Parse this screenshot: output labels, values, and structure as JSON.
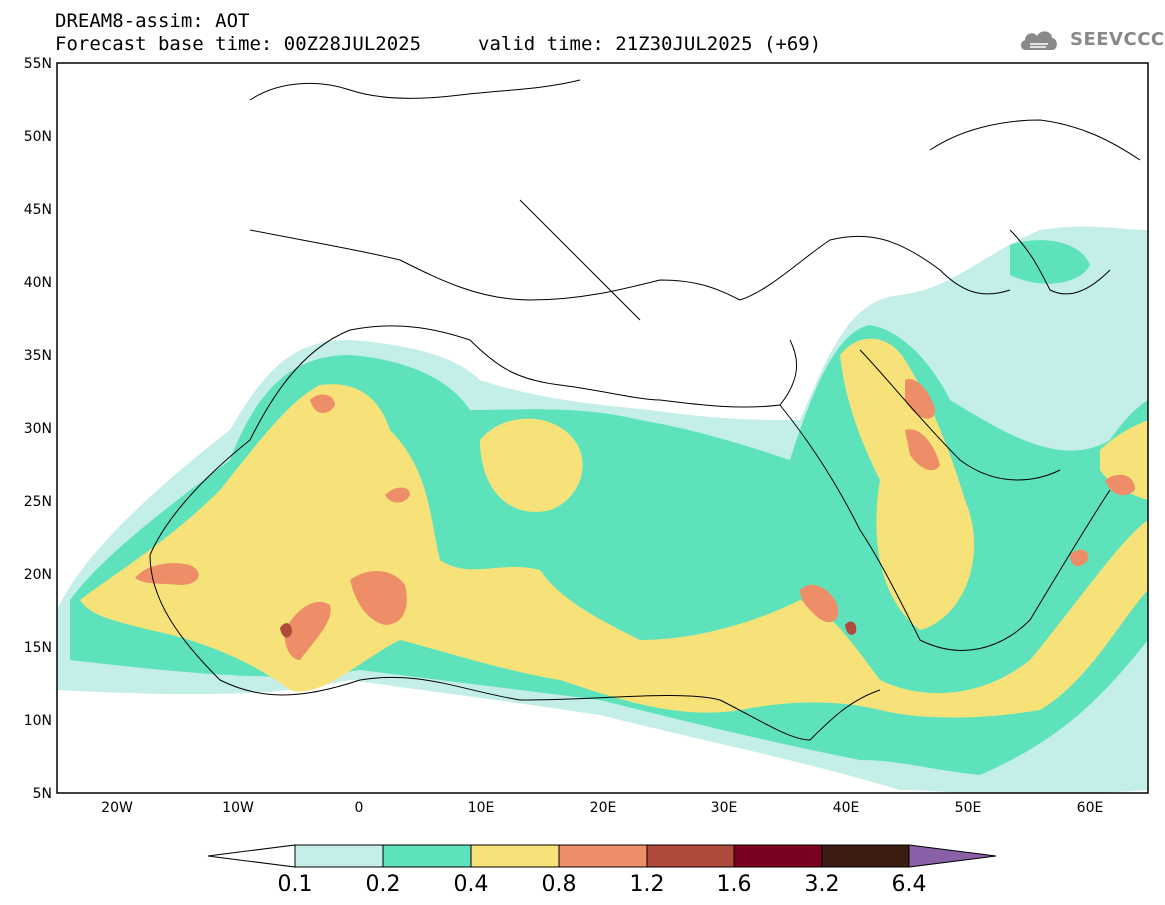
{
  "header": {
    "title_line1": "DREAM8-assim: AOT",
    "title_line2": "Forecast base time: 00Z28JUL2025",
    "valid_time": "valid time: 21Z30JUL2025 (+69)",
    "logo_text": "SEEVCCC"
  },
  "axes": {
    "lat_labels": [
      "55N",
      "50N",
      "45N",
      "40N",
      "35N",
      "30N",
      "25N",
      "20N",
      "15N",
      "10N",
      "5N"
    ],
    "lon_labels": [
      "20W",
      "10W",
      "0",
      "10E",
      "20E",
      "30E",
      "40E",
      "50E",
      "60E"
    ]
  },
  "legend": {
    "levels": [
      "0.1",
      "0.2",
      "0.4",
      "0.8",
      "1.2",
      "1.6",
      "3.2",
      "6.4"
    ],
    "colors": [
      "#ffffff",
      "#c4efe8",
      "#5ee2bc",
      "#f7e27a",
      "#ee8e68",
      "#b04a3a",
      "#7a0022",
      "#3a1c12",
      "#8a60a8"
    ]
  }
}
